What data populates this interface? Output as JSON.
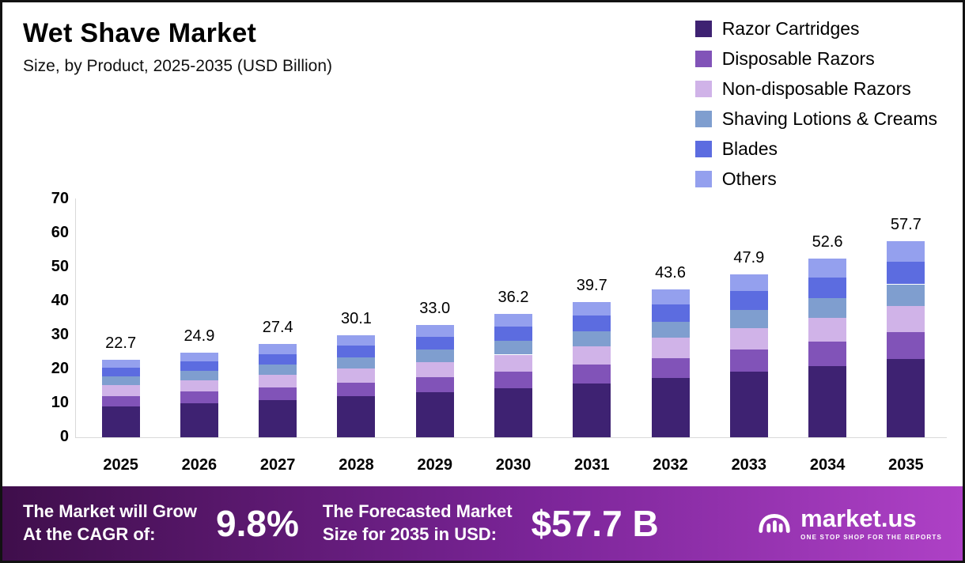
{
  "header": {
    "title": "Wet Shave Market",
    "subtitle": "Size, by Product, 2025-2035 (USD Billion)"
  },
  "chart_data": {
    "type": "bar",
    "stacked": true,
    "title": "Wet Shave Market Size, by Product, 2025-2035 (USD Billion)",
    "xlabel": "",
    "ylabel": "",
    "ylim": [
      0,
      70
    ],
    "yticks": [
      0,
      10,
      20,
      30,
      40,
      50,
      60,
      70
    ],
    "grid": false,
    "legend_position": "top-right",
    "categories": [
      "2025",
      "2026",
      "2027",
      "2028",
      "2029",
      "2030",
      "2031",
      "2032",
      "2033",
      "2034",
      "2035"
    ],
    "totals": [
      22.7,
      24.9,
      27.4,
      30.1,
      33.0,
      36.2,
      39.7,
      43.6,
      47.9,
      52.6,
      57.7
    ],
    "totals_display": [
      "22.7",
      "24.9",
      "27.4",
      "30.1",
      "33.0",
      "36.2",
      "39.7",
      "43.6",
      "47.9",
      "52.6",
      "57.7"
    ],
    "series": [
      {
        "name": "Razor Cartridges",
        "color": "#3e2272",
        "values": [
          9.1,
          10.0,
          11.0,
          12.0,
          13.2,
          14.5,
          15.9,
          17.4,
          19.2,
          21.0,
          23.1
        ]
      },
      {
        "name": "Disposable Razors",
        "color": "#8153b8",
        "values": [
          3.1,
          3.4,
          3.7,
          4.1,
          4.5,
          4.9,
          5.4,
          5.9,
          6.5,
          7.1,
          7.8
        ]
      },
      {
        "name": "Non-disposable Razors",
        "color": "#d0b3e8",
        "values": [
          3.1,
          3.4,
          3.7,
          4.1,
          4.5,
          4.9,
          5.4,
          5.9,
          6.5,
          7.1,
          7.8
        ]
      },
      {
        "name": "Shaving Lotions & Creams",
        "color": "#7f9ecf",
        "values": [
          2.5,
          2.7,
          3.0,
          3.3,
          3.6,
          4.0,
          4.4,
          4.8,
          5.3,
          5.8,
          6.3
        ]
      },
      {
        "name": "Blades",
        "color": "#5c6ce0",
        "values": [
          2.6,
          2.9,
          3.1,
          3.5,
          3.8,
          4.2,
          4.6,
          5.0,
          5.5,
          6.0,
          6.7
        ]
      },
      {
        "name": "Others",
        "color": "#94a0ee",
        "values": [
          2.3,
          2.5,
          2.9,
          3.1,
          3.4,
          3.7,
          4.0,
          4.6,
          4.9,
          5.6,
          6.0
        ]
      }
    ]
  },
  "banner": {
    "cagr_label_line1": "The Market will Grow",
    "cagr_label_line2": "At the CAGR of:",
    "cagr_value": "9.8%",
    "forecast_label_line1": "The Forecasted Market",
    "forecast_label_line2": "Size for 2035 in USD:",
    "forecast_value": "$57.7 B",
    "brand": "market.us",
    "brand_tagline": "ONE STOP SHOP FOR THE REPORTS"
  }
}
